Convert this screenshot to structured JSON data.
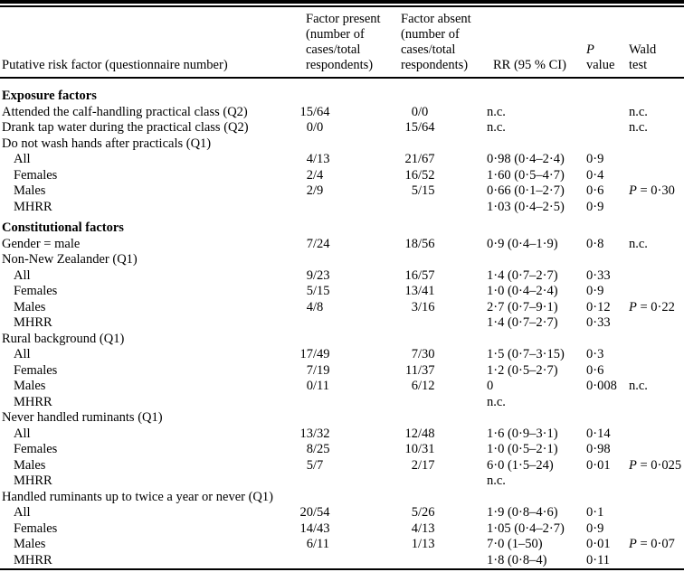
{
  "colors": {
    "ink": "#000000",
    "paper": "#ffffff"
  },
  "table": {
    "header": {
      "col1": "Putative risk factor (questionnaire number)",
      "col2": "Factor present (number of cases/total respondents)",
      "col3": "Factor absent (number of cases/total respondents)",
      "col4": "RR (95 % CI)",
      "col5_line1": "P",
      "col5_line2": "value",
      "col6_line1": "Wald",
      "col6_line2": "test"
    },
    "rows": [
      {
        "type": "section",
        "label": "Exposure factors"
      },
      {
        "type": "item",
        "indent": 0,
        "label": "Attended the calf-handling practical class (Q2)",
        "present": "15/64",
        "absent": "0/0",
        "rr": "n.c.",
        "p": "",
        "wald": "n.c."
      },
      {
        "type": "item",
        "indent": 0,
        "label": "Drank tap water during the practical class (Q2)",
        "present": "0/0",
        "absent": "15/64",
        "rr": "n.c.",
        "p": "",
        "wald": "n.c."
      },
      {
        "type": "item",
        "indent": 0,
        "label": "Do not wash hands after practicals (Q1)",
        "present": "",
        "absent": "",
        "rr": "",
        "p": "",
        "wald": ""
      },
      {
        "type": "item",
        "indent": 1,
        "label": "All",
        "present": "4/13",
        "absent": "21/67",
        "rr": "0·98 (0·4–2·4)",
        "p": "0·9",
        "wald": ""
      },
      {
        "type": "item",
        "indent": 1,
        "label": "Females",
        "present": "2/4",
        "absent": "16/52",
        "rr": "1·60 (0·5–4·7)",
        "p": "0·4",
        "wald": ""
      },
      {
        "type": "item",
        "indent": 1,
        "label": "Males",
        "present": "2/9",
        "absent": "5/15",
        "rr": "0·66 (0·1–2·7)",
        "p": "0·6",
        "wald": "P = 0·30"
      },
      {
        "type": "item",
        "indent": 1,
        "label": "MHRR",
        "present": "",
        "absent": "",
        "rr": "1·03 (0·4–2·5)",
        "p": "0·9",
        "wald": ""
      },
      {
        "type": "section",
        "label": "Constitutional factors"
      },
      {
        "type": "item",
        "indent": 0,
        "label": "Gender = male",
        "present": "7/24",
        "absent": "18/56",
        "rr": "0·9 (0·4–1·9)",
        "p": "0·8",
        "wald": "n.c."
      },
      {
        "type": "item",
        "indent": 0,
        "label": "Non-New Zealander (Q1)",
        "present": "",
        "absent": "",
        "rr": "",
        "p": "",
        "wald": ""
      },
      {
        "type": "item",
        "indent": 1,
        "label": "All",
        "present": "9/23",
        "absent": "16/57",
        "rr": "1·4 (0·7–2·7)",
        "p": "0·33",
        "wald": ""
      },
      {
        "type": "item",
        "indent": 1,
        "label": "Females",
        "present": "5/15",
        "absent": "13/41",
        "rr": "1·0 (0·4–2·4)",
        "p": "0·9",
        "wald": ""
      },
      {
        "type": "item",
        "indent": 1,
        "label": "Males",
        "present": "4/8",
        "absent": "3/16",
        "rr": "2·7 (0·7–9·1)",
        "p": "0·12",
        "wald": "P = 0·22"
      },
      {
        "type": "item",
        "indent": 1,
        "label": "MHRR",
        "present": "",
        "absent": "",
        "rr": "1·4 (0·7–2·7)",
        "p": "0·33",
        "wald": ""
      },
      {
        "type": "item",
        "indent": 0,
        "label": "Rural background (Q1)",
        "present": "",
        "absent": "",
        "rr": "",
        "p": "",
        "wald": ""
      },
      {
        "type": "item",
        "indent": 1,
        "label": "All",
        "present": "17/49",
        "absent": "7/30",
        "rr": "1·5 (0·7–3·15)",
        "p": "0·3",
        "wald": ""
      },
      {
        "type": "item",
        "indent": 1,
        "label": "Females",
        "present": "7/19",
        "absent": "11/37",
        "rr": "1·2 (0·5–2·7)",
        "p": "0·6",
        "wald": ""
      },
      {
        "type": "item",
        "indent": 1,
        "label": "Males",
        "present": "0/11",
        "absent": "6/12",
        "rr": "0",
        "p": "0·008",
        "wald": "n.c."
      },
      {
        "type": "item",
        "indent": 1,
        "label": "MHRR",
        "present": "",
        "absent": "",
        "rr": "n.c.",
        "p": "",
        "wald": ""
      },
      {
        "type": "item",
        "indent": 0,
        "label": "Never handled ruminants (Q1)",
        "present": "",
        "absent": "",
        "rr": "",
        "p": "",
        "wald": ""
      },
      {
        "type": "item",
        "indent": 1,
        "label": "All",
        "present": "13/32",
        "absent": "12/48",
        "rr": "1·6 (0·9–3·1)",
        "p": "0·14",
        "wald": ""
      },
      {
        "type": "item",
        "indent": 1,
        "label": "Females",
        "present": "8/25",
        "absent": "10/31",
        "rr": "1·0 (0·5–2·1)",
        "p": "0·98",
        "wald": ""
      },
      {
        "type": "item",
        "indent": 1,
        "label": "Males",
        "present": "5/7",
        "absent": "2/17",
        "rr": "6·0 (1·5–24)",
        "p": "0·01",
        "wald": "P = 0·025"
      },
      {
        "type": "item",
        "indent": 1,
        "label": "MHRR",
        "present": "",
        "absent": "",
        "rr": "n.c.",
        "p": "",
        "wald": ""
      },
      {
        "type": "item",
        "indent": 0,
        "label": "Handled ruminants up to twice a year or never (Q1)",
        "present": "",
        "absent": "",
        "rr": "",
        "p": "",
        "wald": ""
      },
      {
        "type": "item",
        "indent": 1,
        "label": "All",
        "present": "20/54",
        "absent": "5/26",
        "rr": "1·9 (0·8–4·6)",
        "p": "0·1",
        "wald": ""
      },
      {
        "type": "item",
        "indent": 1,
        "label": "Females",
        "present": "14/43",
        "absent": "4/13",
        "rr": "1·05 (0·4–2·7)",
        "p": "0·9",
        "wald": ""
      },
      {
        "type": "item",
        "indent": 1,
        "label": "Males",
        "present": "6/11",
        "absent": "1/13",
        "rr": "7·0 (1–50)",
        "p": "0·01",
        "wald": "P = 0·07"
      },
      {
        "type": "item",
        "indent": 1,
        "label": "MHRR",
        "present": "",
        "absent": "",
        "rr": "1·8 (0·8–4)",
        "p": "0·11",
        "wald": ""
      }
    ]
  }
}
